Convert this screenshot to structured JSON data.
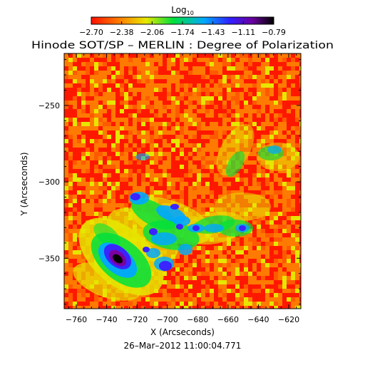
{
  "title": "Hinode SOT/SP – MERLIN : Degree of Polarization",
  "date_label": "26–Mar–2012 11:00:04.771",
  "colorbar": {
    "label_base": "Log",
    "label_sub": "10",
    "ticks": [
      "−2.70",
      "−2.38",
      "−2.06",
      "−1.74",
      "−1.43",
      "−1.11",
      "−0.79"
    ],
    "range": [
      -2.7,
      -0.79
    ]
  },
  "x_axis": {
    "label": "X (Arcseconds)",
    "range": [
      -768,
      -612
    ],
    "ticks": [
      {
        "value": -760,
        "label": "−760"
      },
      {
        "value": -740,
        "label": "−740"
      },
      {
        "value": -720,
        "label": "−720"
      },
      {
        "value": -700,
        "label": "−700"
      },
      {
        "value": -680,
        "label": "−680"
      },
      {
        "value": -660,
        "label": "−660"
      },
      {
        "value": -640,
        "label": "−640"
      },
      {
        "value": -620,
        "label": "−620"
      }
    ]
  },
  "y_axis": {
    "label": "Y (Arcseconds)",
    "range": [
      -383,
      -216
    ],
    "ticks": [
      {
        "value": -250,
        "label": "−250"
      },
      {
        "value": -300,
        "label": "−300"
      },
      {
        "value": -350,
        "label": "−350"
      }
    ]
  },
  "colors": {
    "c0": "#ff1800",
    "c1": "#ff7a00",
    "c2": "#e6e600",
    "c3": "#00e03c",
    "c4": "#00a8ff",
    "c5": "#3a24ff",
    "c6": "#7a00a0",
    "c7": "#000000"
  }
}
